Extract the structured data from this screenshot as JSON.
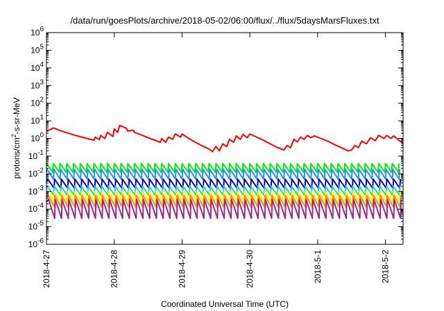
{
  "chart_data": {
    "type": "line",
    "title": "/data/run/goesPlots/archive/2018-05-02/06:00/flux/../flux/5daysMarsFluxes.txt",
    "xlabel": "Coordinated Universal Time (UTC)",
    "ylabel": {
      "base": "protons/cm",
      "sup": "2",
      "rest": "-s-sr-MeV"
    },
    "y_scale": "log",
    "ylim_exponents": [
      -6,
      6
    ],
    "y_tick_labels": [
      {
        "exp": -6,
        "base": "10",
        "sup": "-6"
      },
      {
        "exp": -5,
        "base": "10",
        "sup": "-5"
      },
      {
        "exp": -4,
        "base": "10",
        "sup": "-4"
      },
      {
        "exp": -3,
        "base": "10",
        "sup": "-3"
      },
      {
        "exp": -2,
        "base": "10",
        "sup": "-2"
      },
      {
        "exp": -1,
        "base": "10",
        "sup": "-1"
      },
      {
        "exp": 0,
        "base": "10",
        "sup": "0"
      },
      {
        "exp": 1,
        "base": "10",
        "sup": "1"
      },
      {
        "exp": 2,
        "base": "10",
        "sup": "2"
      },
      {
        "exp": 3,
        "base": "10",
        "sup": "3"
      },
      {
        "exp": 4,
        "base": "10",
        "sup": "4"
      },
      {
        "exp": 5,
        "base": "10",
        "sup": "5"
      },
      {
        "exp": 6,
        "base": "10",
        "sup": "6"
      }
    ],
    "x_range_days": [
      0,
      5.26
    ],
    "x_ticks": [
      {
        "day": 0,
        "label": "2018-4-27"
      },
      {
        "day": 1,
        "label": "2018-4-28"
      },
      {
        "day": 2,
        "label": "2018-4-29"
      },
      {
        "day": 3,
        "label": "2018-4-30"
      },
      {
        "day": 4,
        "label": "2018-5-1"
      },
      {
        "day": 5,
        "label": "2018-5-2"
      }
    ],
    "grid": false,
    "sawtooth_period_days": 0.1,
    "series": [
      {
        "color": "#ff0000",
        "points": [
          [
            0,
            2.5
          ],
          [
            0.1,
            4.0
          ],
          [
            0.2,
            2.8
          ],
          [
            0.4,
            1.6
          ],
          [
            0.5,
            1.25
          ],
          [
            0.6,
            1.0
          ],
          [
            0.7,
            0.8
          ],
          [
            0.72,
            1.2
          ],
          [
            0.78,
            0.85
          ],
          [
            0.8,
            1.5
          ],
          [
            0.86,
            1.0
          ],
          [
            0.9,
            2.2
          ],
          [
            0.98,
            1.3
          ],
          [
            1.0,
            3.5
          ],
          [
            1.05,
            2.2
          ],
          [
            1.08,
            5.5
          ],
          [
            1.18,
            3.8
          ],
          [
            1.2,
            2.6
          ],
          [
            1.28,
            3.0
          ],
          [
            1.3,
            2.2
          ],
          [
            1.4,
            1.6
          ],
          [
            1.5,
            1.1
          ],
          [
            1.6,
            0.8
          ],
          [
            1.68,
            0.6
          ],
          [
            1.7,
            1.0
          ],
          [
            1.76,
            0.6
          ],
          [
            1.8,
            1.2
          ],
          [
            1.86,
            0.9
          ],
          [
            1.9,
            1.8
          ],
          [
            1.98,
            1.2
          ],
          [
            2.0,
            1.8
          ],
          [
            2.1,
            1.0
          ],
          [
            2.2,
            0.6
          ],
          [
            2.3,
            0.38
          ],
          [
            2.4,
            0.25
          ],
          [
            2.45,
            0.18
          ],
          [
            2.5,
            0.35
          ],
          [
            2.55,
            0.2
          ],
          [
            2.6,
            0.5
          ],
          [
            2.66,
            0.35
          ],
          [
            2.7,
            0.9
          ],
          [
            2.76,
            0.6
          ],
          [
            2.8,
            1.4
          ],
          [
            2.86,
            0.9
          ],
          [
            2.9,
            1.7
          ],
          [
            2.96,
            1.1
          ],
          [
            3.0,
            1.8
          ],
          [
            3.1,
            1.2
          ],
          [
            3.2,
            0.8
          ],
          [
            3.3,
            0.5
          ],
          [
            3.4,
            0.32
          ],
          [
            3.5,
            0.22
          ],
          [
            3.55,
            0.4
          ],
          [
            3.6,
            0.3
          ],
          [
            3.65,
            0.9
          ],
          [
            3.7,
            0.65
          ],
          [
            3.75,
            1.2
          ],
          [
            3.8,
            0.9
          ],
          [
            3.85,
            1.5
          ],
          [
            3.9,
            1.1
          ],
          [
            3.95,
            1.4
          ],
          [
            4.05,
            1.0
          ],
          [
            4.15,
            0.7
          ],
          [
            4.25,
            0.45
          ],
          [
            4.35,
            0.3
          ],
          [
            4.45,
            0.2
          ],
          [
            4.5,
            0.22
          ],
          [
            4.55,
            0.4
          ],
          [
            4.6,
            0.3
          ],
          [
            4.65,
            0.7
          ],
          [
            4.72,
            0.5
          ],
          [
            4.78,
            1.1
          ],
          [
            4.85,
            0.75
          ],
          [
            4.9,
            1.5
          ],
          [
            4.98,
            1.0
          ],
          [
            5.02,
            1.5
          ],
          [
            5.08,
            1.0
          ],
          [
            5.12,
            1.4
          ],
          [
            5.2,
            0.8
          ],
          [
            5.26,
            0.55
          ]
        ]
      },
      {
        "color": "#00ee00",
        "sawtooth": {
          "peak": 0.038,
          "trough": 0.012,
          "phase": 0.0
        }
      },
      {
        "color": "#1e90ff",
        "sawtooth": {
          "peak": 0.018,
          "trough": 0.005,
          "phase": 0.01
        }
      },
      {
        "color": "#0000cc",
        "sawtooth": {
          "peak": 0.005,
          "trough": 0.0015,
          "phase": 0.02
        }
      },
      {
        "color": "#20d0c0",
        "sawtooth": {
          "peak": 0.002,
          "trough": 0.0006,
          "phase": 0.015
        }
      },
      {
        "color": "#ffff00",
        "sawtooth": {
          "peak": 0.001,
          "trough": 0.00025,
          "phase": 0.02
        }
      },
      {
        "color": "#ff8c00",
        "sawtooth": {
          "peak": 0.0006,
          "trough": 0.00013,
          "phase": 0.025
        }
      },
      {
        "color": "#9a2a8a",
        "sawtooth": {
          "peak": 0.00035,
          "trough": 3e-05,
          "phase": 0.03
        }
      }
    ]
  }
}
